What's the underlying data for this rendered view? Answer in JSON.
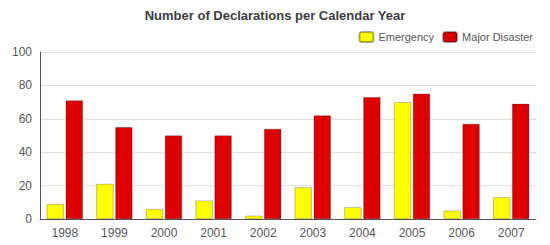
{
  "chart_data": {
    "type": "bar",
    "title": "Number of Declarations per Calendar Year",
    "categories": [
      "1998",
      "1999",
      "2000",
      "2001",
      "2002",
      "2003",
      "2004",
      "2005",
      "2006",
      "2007"
    ],
    "series": [
      {
        "name": "Emergency",
        "color": "#FFFF00",
        "values": [
          9,
          21,
          6,
          11,
          2,
          19,
          7,
          70,
          5,
          13
        ]
      },
      {
        "name": "Major Disaster",
        "color": "#DD0000",
        "values": [
          71,
          55,
          50,
          50,
          54,
          62,
          73,
          75,
          57,
          69
        ]
      }
    ],
    "ylim": [
      0,
      100
    ],
    "yticks": [
      0,
      20,
      40,
      60,
      80,
      100
    ],
    "grid": true,
    "legend": "upper right"
  }
}
